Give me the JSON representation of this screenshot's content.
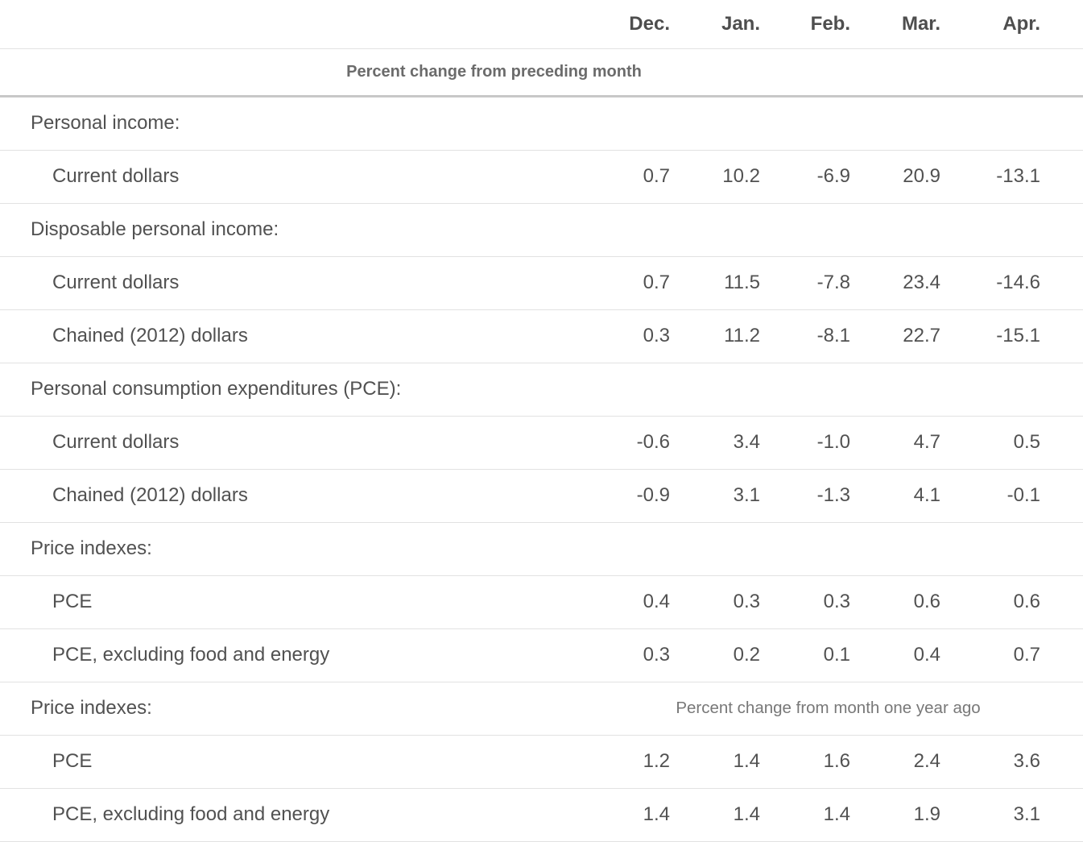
{
  "chart_data": {
    "type": "table",
    "columns": [
      "Dec.",
      "Jan.",
      "Feb.",
      "Mar.",
      "Apr."
    ],
    "panel_headers": {
      "monthly": "Percent change from preceding month",
      "yearly": "Percent change from month one year ago"
    },
    "rows": [
      {
        "type": "section",
        "label": "Personal income:"
      },
      {
        "type": "data",
        "label": "Current dollars",
        "values": [
          "0.7",
          "10.2",
          "-6.9",
          "20.9",
          "-13.1"
        ]
      },
      {
        "type": "section",
        "label": "Disposable personal income:"
      },
      {
        "type": "data",
        "label": "Current dollars",
        "values": [
          "0.7",
          "11.5",
          "-7.8",
          "23.4",
          "-14.6"
        ]
      },
      {
        "type": "data",
        "label": "Chained (2012) dollars",
        "values": [
          "0.3",
          "11.2",
          "-8.1",
          "22.7",
          "-15.1"
        ]
      },
      {
        "type": "section",
        "label": "Personal consumption expenditures (PCE):"
      },
      {
        "type": "data",
        "label": "Current dollars",
        "values": [
          "-0.6",
          "3.4",
          "-1.0",
          "4.7",
          "0.5"
        ]
      },
      {
        "type": "data",
        "label": "Chained (2012) dollars",
        "values": [
          "-0.9",
          "3.1",
          "-1.3",
          "4.1",
          "-0.1"
        ]
      },
      {
        "type": "section",
        "label": "Price indexes:"
      },
      {
        "type": "data",
        "label": "PCE",
        "values": [
          "0.4",
          "0.3",
          "0.3",
          "0.6",
          "0.6"
        ]
      },
      {
        "type": "data",
        "label": "PCE, excluding food and energy",
        "values": [
          "0.3",
          "0.2",
          "0.1",
          "0.4",
          "0.7"
        ]
      },
      {
        "type": "section",
        "label": "Price indexes:",
        "note": "Percent change from month one year ago"
      },
      {
        "type": "data",
        "label": "PCE",
        "values": [
          "1.2",
          "1.4",
          "1.6",
          "2.4",
          "3.6"
        ]
      },
      {
        "type": "data",
        "label": "PCE, excluding food and energy",
        "values": [
          "1.4",
          "1.4",
          "1.4",
          "1.9",
          "3.1"
        ]
      }
    ],
    "colors": {
      "text": "#515151",
      "header_text": "#4e4e4e",
      "subheader_text": "#6b6b6b",
      "note_text": "#787878",
      "border_light": "#e2e2e2",
      "border_heavy": "#c8c8c8",
      "background": "#ffffff"
    }
  }
}
